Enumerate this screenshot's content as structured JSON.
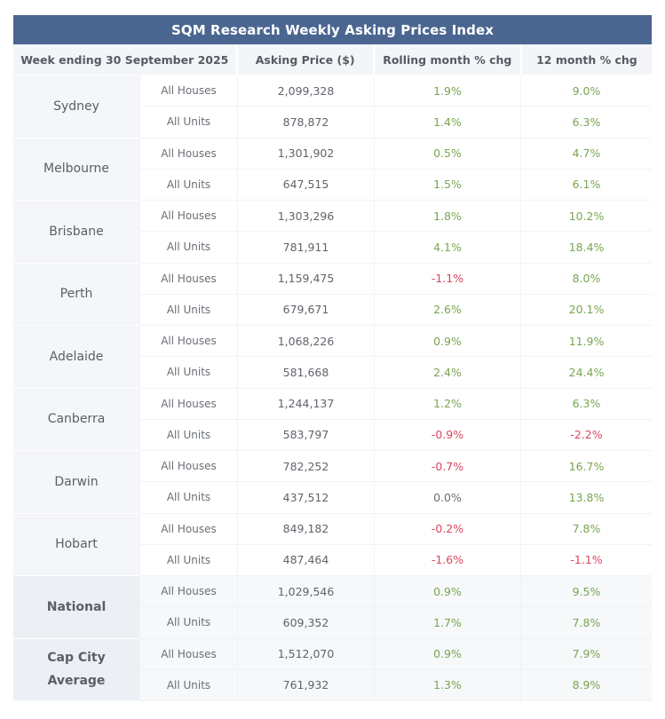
{
  "title": "SQM Research Weekly Asking Prices Index",
  "headers": {
    "week": "Week ending 30 September 2025",
    "price": "Asking Price ($)",
    "rolling": "Rolling month % chg",
    "twelve": "12 month % chg"
  },
  "colors": {
    "header_bg": "#4a6690",
    "positive": "#79a552",
    "negative": "#d9465e"
  },
  "groups": [
    {
      "city": "Sydney",
      "summary": false,
      "rows": [
        {
          "type": "All Houses",
          "price": "2,099,328",
          "rolling": "1.9%",
          "twelve": "9.0%"
        },
        {
          "type": "All Units",
          "price": "878,872",
          "rolling": "1.4%",
          "twelve": "6.3%"
        }
      ]
    },
    {
      "city": "Melbourne",
      "summary": false,
      "rows": [
        {
          "type": "All Houses",
          "price": "1,301,902",
          "rolling": "0.5%",
          "twelve": "4.7%"
        },
        {
          "type": "All Units",
          "price": "647,515",
          "rolling": "1.5%",
          "twelve": "6.1%"
        }
      ]
    },
    {
      "city": "Brisbane",
      "summary": false,
      "rows": [
        {
          "type": "All Houses",
          "price": "1,303,296",
          "rolling": "1.8%",
          "twelve": "10.2%"
        },
        {
          "type": "All Units",
          "price": "781,911",
          "rolling": "4.1%",
          "twelve": "18.4%"
        }
      ]
    },
    {
      "city": "Perth",
      "summary": false,
      "rows": [
        {
          "type": "All Houses",
          "price": "1,159,475",
          "rolling": "-1.1%",
          "twelve": "8.0%"
        },
        {
          "type": "All Units",
          "price": "679,671",
          "rolling": "2.6%",
          "twelve": "20.1%"
        }
      ]
    },
    {
      "city": "Adelaide",
      "summary": false,
      "rows": [
        {
          "type": "All Houses",
          "price": "1,068,226",
          "rolling": "0.9%",
          "twelve": "11.9%"
        },
        {
          "type": "All Units",
          "price": "581,668",
          "rolling": "2.4%",
          "twelve": "24.4%"
        }
      ]
    },
    {
      "city": "Canberra",
      "summary": false,
      "rows": [
        {
          "type": "All Houses",
          "price": "1,244,137",
          "rolling": "1.2%",
          "twelve": "6.3%"
        },
        {
          "type": "All Units",
          "price": "583,797",
          "rolling": "-0.9%",
          "twelve": "-2.2%"
        }
      ]
    },
    {
      "city": "Darwin",
      "summary": false,
      "rows": [
        {
          "type": "All Houses",
          "price": "782,252",
          "rolling": "-0.7%",
          "twelve": "16.7%"
        },
        {
          "type": "All Units",
          "price": "437,512",
          "rolling": "0.0%",
          "twelve": "13.8%"
        }
      ]
    },
    {
      "city": "Hobart",
      "summary": false,
      "rows": [
        {
          "type": "All Houses",
          "price": "849,182",
          "rolling": "-0.2%",
          "twelve": "7.8%"
        },
        {
          "type": "All Units",
          "price": "487,464",
          "rolling": "-1.6%",
          "twelve": "-1.1%"
        }
      ]
    },
    {
      "city": "National",
      "summary": true,
      "rows": [
        {
          "type": "All Houses",
          "price": "1,029,546",
          "rolling": "0.9%",
          "twelve": "9.5%"
        },
        {
          "type": "All Units",
          "price": "609,352",
          "rolling": "1.7%",
          "twelve": "7.8%"
        }
      ]
    },
    {
      "city": "Cap City Average",
      "summary": true,
      "rows": [
        {
          "type": "All Houses",
          "price": "1,512,070",
          "rolling": "0.9%",
          "twelve": "7.9%"
        },
        {
          "type": "All Units",
          "price": "761,932",
          "rolling": "1.3%",
          "twelve": "8.9%"
        }
      ]
    }
  ]
}
